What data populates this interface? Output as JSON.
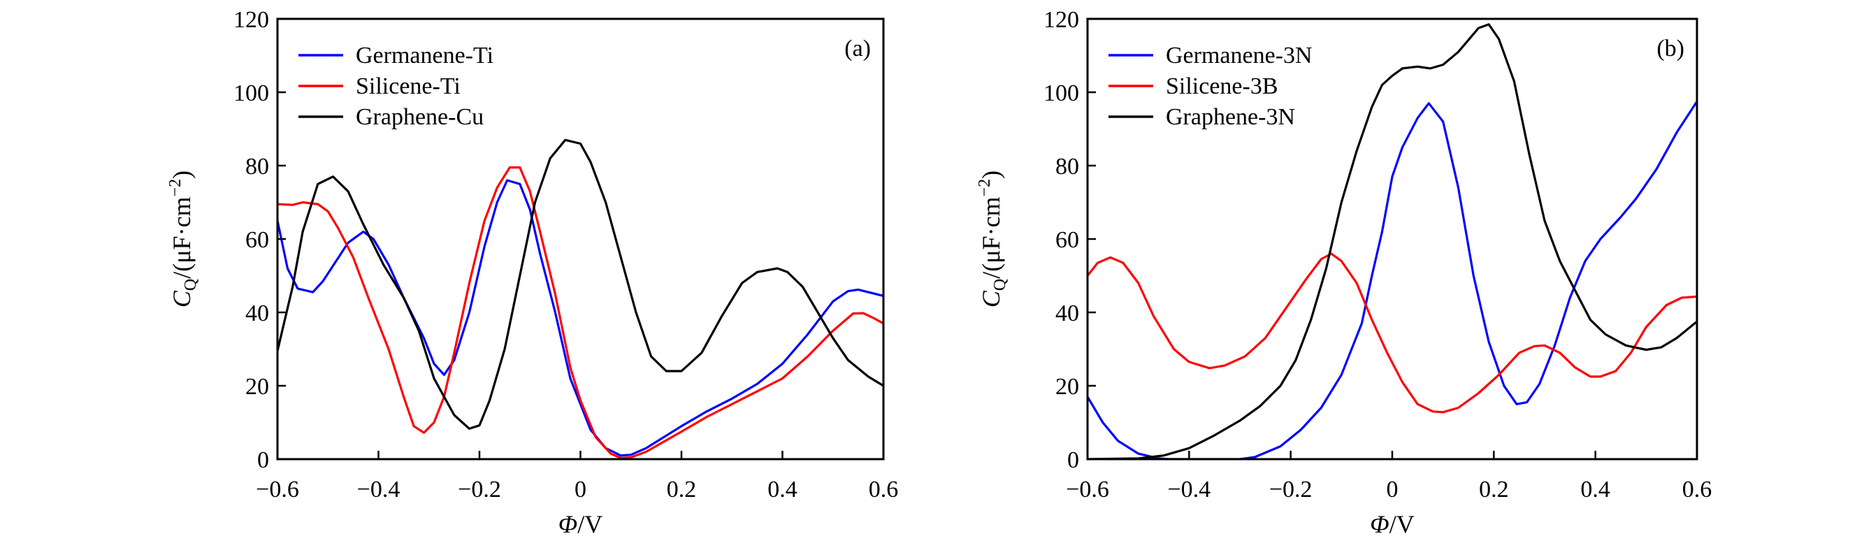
{
  "chart_data": [
    {
      "type": "line",
      "panel_label": "(a)",
      "xlabel": "Φ/V",
      "ylabel": "C_Q/(μF·cm⁻²)",
      "ylabel_parts": {
        "symbol": "C",
        "subscript": "Q",
        "unit": "/(μF·cm",
        "exponent": "−2",
        "close": ")"
      },
      "xlabel_parts": {
        "symbol": "Φ",
        "unit": "/V"
      },
      "xlim": [
        -0.6,
        0.6
      ],
      "ylim": [
        0,
        120
      ],
      "xticks": [
        -0.6,
        -0.4,
        -0.2,
        0,
        0.2,
        0.4,
        0.6
      ],
      "xtick_labels": [
        "−0.6",
        "−0.4",
        "−0.2",
        "0",
        "0.2",
        "0.4",
        "0.6"
      ],
      "yticks": [
        0,
        20,
        40,
        60,
        80,
        100,
        120
      ],
      "ytick_labels": [
        "0",
        "20",
        "40",
        "60",
        "80",
        "100",
        "120"
      ],
      "grid": false,
      "legend_position": "top-left",
      "series": [
        {
          "name": "Germanene-Ti",
          "color": "#0000ff",
          "x": [
            -0.6,
            -0.58,
            -0.56,
            -0.53,
            -0.51,
            -0.46,
            -0.43,
            -0.41,
            -0.38,
            -0.35,
            -0.31,
            -0.29,
            -0.27,
            -0.25,
            -0.22,
            -0.19,
            -0.165,
            -0.145,
            -0.12,
            -0.1,
            -0.08,
            -0.05,
            -0.02,
            0,
            0.02,
            0.05,
            0.08,
            0.1,
            0.13,
            0.2,
            0.25,
            0.3,
            0.35,
            0.4,
            0.45,
            0.5,
            0.53,
            0.55,
            0.6
          ],
          "y": [
            65,
            52,
            46.5,
            45.5,
            48.5,
            59,
            62,
            60,
            53,
            44,
            33,
            26,
            23,
            27,
            40,
            58,
            70,
            76,
            75,
            68,
            56,
            40,
            22,
            15,
            8,
            3,
            1,
            1.2,
            3,
            9,
            13,
            16.5,
            20.5,
            26,
            34,
            43,
            45.8,
            46.2,
            44.5
          ]
        },
        {
          "name": "Silicene-Ti",
          "color": "#ff0000",
          "x": [
            -0.6,
            -0.57,
            -0.55,
            -0.52,
            -0.5,
            -0.48,
            -0.45,
            -0.42,
            -0.38,
            -0.35,
            -0.33,
            -0.31,
            -0.29,
            -0.27,
            -0.25,
            -0.22,
            -0.19,
            -0.165,
            -0.14,
            -0.12,
            -0.1,
            -0.08,
            -0.05,
            -0.02,
            0,
            0.03,
            0.06,
            0.08,
            0.1,
            0.13,
            0.2,
            0.25,
            0.3,
            0.35,
            0.4,
            0.45,
            0.5,
            0.54,
            0.56,
            0.58,
            0.6
          ],
          "y": [
            69.5,
            69.3,
            70,
            69.5,
            67.5,
            63,
            55,
            44,
            30,
            17,
            9,
            7.2,
            10,
            17,
            29,
            48,
            65,
            74,
            79.5,
            79.5,
            73,
            62,
            45,
            25,
            16,
            6,
            1.5,
            0.3,
            0.5,
            2,
            7.5,
            11.5,
            15,
            18.5,
            22,
            28,
            35,
            39.7,
            39.8,
            38.5,
            37
          ]
        },
        {
          "name": "Graphene-Cu",
          "color": "#000000",
          "x": [
            -0.6,
            -0.57,
            -0.55,
            -0.52,
            -0.49,
            -0.46,
            -0.43,
            -0.39,
            -0.35,
            -0.32,
            -0.29,
            -0.25,
            -0.22,
            -0.2,
            -0.18,
            -0.15,
            -0.12,
            -0.09,
            -0.06,
            -0.03,
            0,
            0.02,
            0.05,
            0.08,
            0.11,
            0.14,
            0.17,
            0.2,
            0.24,
            0.28,
            0.32,
            0.35,
            0.39,
            0.41,
            0.44,
            0.47,
            0.5,
            0.53,
            0.57,
            0.6
          ],
          "y": [
            29.5,
            47,
            62,
            75,
            77,
            73,
            64,
            53,
            44,
            35,
            22,
            12,
            8.3,
            9.2,
            16,
            30,
            50,
            70,
            82,
            87,
            86,
            81,
            70,
            55,
            40,
            28,
            24,
            24,
            29,
            39,
            48,
            51,
            52,
            51,
            47,
            40,
            33,
            27,
            22.5,
            20
          ]
        }
      ]
    },
    {
      "type": "line",
      "panel_label": "(b)",
      "xlabel": "Φ/V",
      "ylabel": "C_Q/(μF·cm⁻²)",
      "ylabel_parts": {
        "symbol": "C",
        "subscript": "Q",
        "unit": "/(μF·cm",
        "exponent": "−2",
        "close": ")"
      },
      "xlabel_parts": {
        "symbol": "Φ",
        "unit": "/V"
      },
      "xlim": [
        -0.6,
        0.6
      ],
      "ylim": [
        0,
        120
      ],
      "xticks": [
        -0.6,
        -0.4,
        -0.2,
        0,
        0.2,
        0.4,
        0.6
      ],
      "xtick_labels": [
        "−0.6",
        "−0.4",
        "−0.2",
        "0",
        "0.2",
        "0.4",
        "0.6"
      ],
      "yticks": [
        0,
        20,
        40,
        60,
        80,
        100,
        120
      ],
      "ytick_labels": [
        "0",
        "20",
        "40",
        "60",
        "80",
        "100",
        "120"
      ],
      "grid": false,
      "legend_position": "top-left",
      "series": [
        {
          "name": "Germanene-3N",
          "color": "#0000ff",
          "x": [
            -0.6,
            -0.57,
            -0.54,
            -0.5,
            -0.46,
            -0.44,
            -0.3,
            -0.27,
            -0.22,
            -0.18,
            -0.14,
            -0.1,
            -0.06,
            -0.04,
            -0.02,
            0,
            0.02,
            0.05,
            0.072,
            0.1,
            0.13,
            0.16,
            0.19,
            0.22,
            0.245,
            0.265,
            0.29,
            0.32,
            0.35,
            0.38,
            0.41,
            0.45,
            0.48,
            0.52,
            0.56,
            0.6
          ],
          "y": [
            17,
            10,
            5,
            1.5,
            0.2,
            0,
            0,
            0.6,
            3.5,
            8,
            14,
            23,
            37,
            50,
            62,
            77,
            85,
            93,
            97,
            92,
            74,
            50,
            32,
            20,
            15,
            15.5,
            20.5,
            31,
            44,
            54,
            60,
            66,
            71,
            79,
            89,
            97.5
          ]
        },
        {
          "name": "Silicene-3B",
          "color": "#ff0000",
          "x": [
            -0.6,
            -0.58,
            -0.555,
            -0.53,
            -0.5,
            -0.47,
            -0.43,
            -0.4,
            -0.36,
            -0.33,
            -0.29,
            -0.25,
            -0.21,
            -0.17,
            -0.14,
            -0.12,
            -0.1,
            -0.07,
            -0.04,
            -0.01,
            0.02,
            0.05,
            0.08,
            0.1,
            0.13,
            0.17,
            0.21,
            0.25,
            0.28,
            0.3,
            0.33,
            0.36,
            0.39,
            0.41,
            0.44,
            0.47,
            0.5,
            0.54,
            0.57,
            0.6
          ],
          "y": [
            50,
            53.5,
            55,
            53.5,
            48,
            39,
            30,
            26.5,
            24.8,
            25.5,
            28,
            33,
            41,
            49,
            54.5,
            56,
            54,
            48,
            38,
            29,
            21,
            15,
            13,
            12.8,
            14,
            18,
            23,
            29,
            30.8,
            31,
            29,
            25,
            22.5,
            22.5,
            24,
            29,
            36,
            42,
            44,
            44.3
          ]
        },
        {
          "name": "Graphene-3N",
          "color": "#000000",
          "x": [
            -0.6,
            -0.5,
            -0.45,
            -0.4,
            -0.35,
            -0.3,
            -0.26,
            -0.22,
            -0.19,
            -0.16,
            -0.13,
            -0.1,
            -0.07,
            -0.04,
            -0.02,
            0,
            0.02,
            0.05,
            0.075,
            0.1,
            0.13,
            0.17,
            0.19,
            0.21,
            0.24,
            0.27,
            0.3,
            0.33,
            0.36,
            0.39,
            0.42,
            0.46,
            0.5,
            0.53,
            0.56,
            0.6
          ],
          "y": [
            0,
            0.2,
            1,
            3,
            6.5,
            10.5,
            14.5,
            20,
            27,
            38,
            52,
            70,
            84,
            96,
            102,
            104.5,
            106.5,
            107,
            106.5,
            107.5,
            111,
            117.5,
            118.5,
            114.5,
            103,
            83,
            65,
            54,
            46,
            38,
            34,
            31,
            29.8,
            30.5,
            33,
            37.5
          ]
        }
      ]
    }
  ]
}
